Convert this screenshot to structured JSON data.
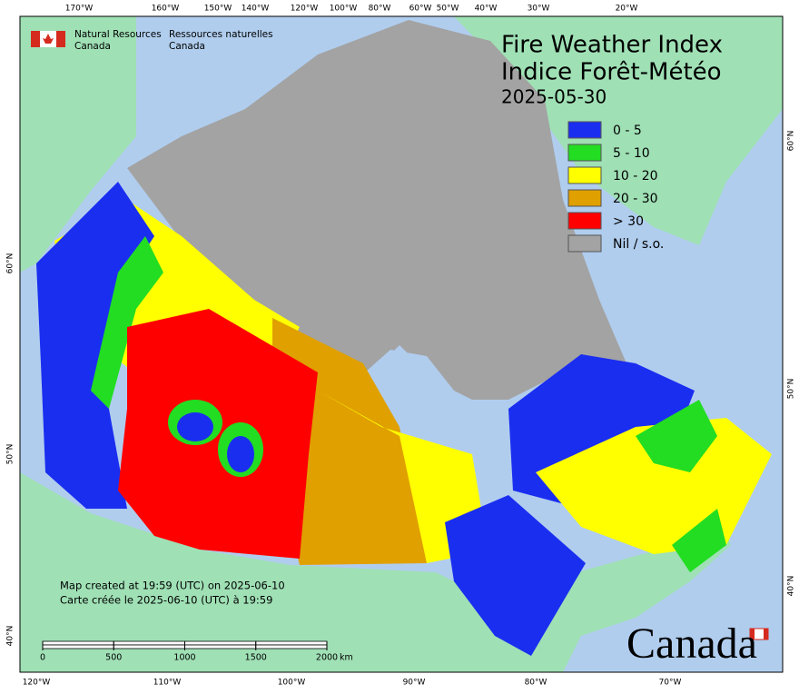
{
  "header": {
    "agency_en": [
      "Natural Resources",
      "Canada"
    ],
    "agency_fr": [
      "Ressources naturelles",
      "Canada"
    ]
  },
  "title": {
    "line1": "Fire Weather Index",
    "line2": "Indice Forêt-Météo",
    "date": "2025-05-30"
  },
  "legend": [
    {
      "label": "0 - 5",
      "color": "#1a2ef0"
    },
    {
      "label": "5 - 10",
      "color": "#22dd22"
    },
    {
      "label": "10 - 20",
      "color": "#ffff00"
    },
    {
      "label": "20 - 30",
      "color": "#e0a000"
    },
    {
      "label": "> 30",
      "color": "#ff0000"
    },
    {
      "label": "Nil / s.o.",
      "color": "#a3a3a3"
    }
  ],
  "graticule": {
    "top": [
      "170°W",
      "160°W",
      "150°W",
      "140°W",
      "120°W",
      "100°W",
      "80°W",
      "60°W",
      "50°W",
      "40°W",
      "30°W",
      "20°W"
    ],
    "bottom": [
      "120°W",
      "110°W",
      "100°W",
      "90°W",
      "80°W",
      "70°W"
    ],
    "left": [
      "60°N",
      "50°N",
      "40°N"
    ],
    "right": [
      "60°N",
      "50°N",
      "40°N"
    ]
  },
  "footer": {
    "created_en": "Map created at 19:59 (UTC) on 2025-06-10",
    "created_fr": "Carte créée le 2025-06-10 (UTC) à 19:59"
  },
  "scale_bar": {
    "ticks": [
      0,
      500,
      1000,
      1500,
      2000
    ],
    "unit": "km"
  },
  "wordmark": "Canada"
}
